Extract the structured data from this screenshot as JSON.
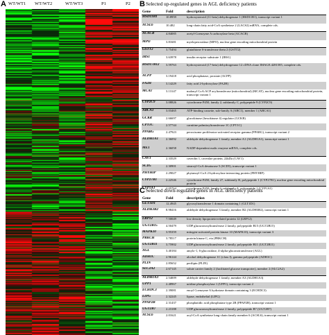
{
  "panel_a": {
    "letter": "A",
    "columns": [
      "WT/WT1",
      "WT/WT2",
      "WT/WT3",
      "P1",
      "P2"
    ]
  },
  "panel_b": {
    "letter": "B",
    "title": "Selected up-regulated genes in AGL deficiency patients",
    "headers": [
      "Gene",
      "Fold",
      "description"
    ],
    "rows": [
      {
        "gene": "HSD11B1",
        "fold": "10.8959",
        "desc": "hydroxysteroid (11-beta) dehydrogenase 1 (HSD11B1), transcript variant 1"
      },
      {
        "gene": "ACSL6",
        "fold": "10.482",
        "desc": "long-chain fatty acid-CoA synthetase 2 (LACS2) mRNA, complete cds."
      },
      {
        "gene": "ACACB",
        "fold": "4.84085",
        "desc": "acetyl-Coenzyme A carboxylase beta (ACACB)"
      },
      {
        "gene": "MPO",
        "fold": "3.81681",
        "desc": "myeloperoxidase (MPO), nuclear gene encoding mitochondrial protein"
      },
      {
        "gene": "GSTT2",
        "fold": "3.75494",
        "desc": "glutathione S-transferase theta 2 (GSTT2)"
      },
      {
        "gene": "IRS1",
        "fold": "3.63978",
        "desc": "insulin receptor substrate 1 (IRS1)"
      },
      {
        "gene": "HSD17B12",
        "fold": "3.59763",
        "desc": "hydroxysteroid (17-beta) dehydrogenase 12 cDNA clone IMAGE:4281585, complete cds."
      },
      {
        "gene": "ACPP",
        "fold": "3.19418",
        "desc": "acid phosphatase, prostate (ACPP)"
      },
      {
        "gene": "FA2H",
        "fold": "3.14229",
        "desc": "fatty acid 2-hydroxylase (FA2H)"
      },
      {
        "gene": "MCAT",
        "fold": "3.13147",
        "desc": "malonyl CoA:ACP acyltransferase (mitochondrial) (MCAT), nuclear gene encoding mitochondrial protein, transcript variant 1"
      },
      {
        "gene": "CYP2C9",
        "fold": "3.08826",
        "desc": "cytochrome P450, family 2, subfamily C, polypeptide 9 (CYP2C9)"
      },
      {
        "gene": "ABCA1",
        "fold": "3.03465",
        "desc": "ATP-binding cassette, sub-family A (ABC1), member 1 (ABCA1)"
      },
      {
        "gene": "GCKR",
        "fold": "2.66697",
        "desc": "glucokinase (hexokinase 4) regulator (GCKR)"
      },
      {
        "gene": "CPT1C",
        "fold": "2.57744",
        "desc": "carnitine palmitoyltransferase 1C (CPT1C)"
      },
      {
        "gene": "PPARG",
        "fold": "2.47923",
        "desc": "peroxisome proliferator-activated receptor gamma (PPARG), transcript variant 2"
      },
      {
        "gene": "ALDH1A1",
        "fold": "2.36092",
        "desc": "aldehyde dehydrogenase 1 family, member A1 (ALDH1A1), transcript variant 1"
      },
      {
        "gene": "ME1",
        "fold": "2.36058",
        "desc": "NADP-dependent malic enzyme mRNA, complete cds."
      },
      {
        "gene": "CAV1",
        "fold": "2.33529",
        "desc": "caveolin 1, caveolae protein, 22kDa (CAV1)"
      },
      {
        "gene": "SCD5",
        "fold": "2.30901",
        "desc": "stearoyl-CoA desaturase 5 (SCD5), transcript variant 1"
      },
      {
        "gene": "PHYHIP",
        "fold": "2.29027",
        "desc": "phytanoyl-CoA 2-hydroxylase interacting protein (PHYHIP)"
      },
      {
        "gene": "CYP27B1",
        "fold": "2.22546",
        "desc": "cytochrome P450, family 27, subfamily B, polypeptide 1 (CYP27B1), nuclear gene encoding mitochondrial protein"
      },
      {
        "gene": "CYP1A1",
        "fold": "2.05764",
        "desc": "cytochrome P450, family 1, subfamily A, polypeptide 1 (CYP1A1)"
      }
    ]
  },
  "panel_c": {
    "letter": "C",
    "title": "Selected down-regulated genes in AGL deficiency patients",
    "headers": [
      "Gene",
      "Fold",
      "description"
    ],
    "rows": [
      {
        "gene": "GLT1D1",
        "fold": "12.4945",
        "desc": "glycosyltransferase 1 domain containing 1 (GLT1D1)"
      },
      {
        "gene": "ALDH3B2",
        "fold": "8.98416",
        "desc": "aldehyde dehydrogenase 3 family, member B2 (ALDH3B2), transcript variant 1"
      },
      {
        "gene": "LRP12",
        "fold": "7.50049",
        "desc": "low density lipoprotein-related protein 12 (LRP12)"
      },
      {
        "gene": "UGT2B15",
        "fold": "4.50479",
        "desc": "UDP glucuronosyltransferase 2 family, polypeptide B15 (UGT2B15)"
      },
      {
        "gene": "MAPK10",
        "fold": "3.95359",
        "desc": "mitogen-activated protein kinase 10 (MAPK10), transcript variant 3"
      },
      {
        "gene": "PRKCH",
        "fold": "3.78517",
        "desc": "protein kinase C, eta (PRKCH)"
      },
      {
        "gene": "UGT2B11",
        "fold": "3.75902",
        "desc": "UDP glucuronosyltransferase 2 family, polypeptide B11 (UGT2B11)"
      },
      {
        "gene": "AGL",
        "fold": "3.40184",
        "desc": "amylo-1, 6-glucosidase, 4-alpha-glucanotransferase (AGL)"
      },
      {
        "gene": "ADH1C",
        "fold": "2.96144",
        "desc": "alcohol dehydrogenase 1C (class I), gamma polypeptide (ADH1C)"
      },
      {
        "gene": "PLIN",
        "fold": "2.85652",
        "desc": "perilipin (PLIN)"
      },
      {
        "gene": "SLC2A2",
        "fold": "2.67145",
        "desc": "solute carrier family 2 (facilitated glucose transporter), member 2 (SLC2A2)"
      },
      {
        "gene": "ALDH1A3",
        "fold": "2.54009",
        "desc": "aldehyde dehydrogenase 1 family, member A3 (ALDH1A3)"
      },
      {
        "gene": "UPP1",
        "fold": "2.48967",
        "desc": "uridine phosphorylase 1 (UPP1), transcript variant 2"
      },
      {
        "gene": "ECHDC3",
        "fold": "2.39081",
        "desc": "enoyl Coenzyme A hydratase domain containing 3 (ECHDC3)"
      },
      {
        "gene": "LIPG",
        "fold": "2.32245",
        "desc": "lipase, endothelial (LIPG)"
      },
      {
        "gene": "PPAP2B",
        "fold": "2.31437",
        "desc": "phosphatidic acid phosphatase type 2B (PPAP2B), transcript variant 1"
      },
      {
        "gene": "UGT2B7",
        "fold": "2.23188",
        "desc": "UDP glucuronosyltransferase 2 family, polypeptide B7 (UGT2B7)"
      },
      {
        "gene": "ACSL6",
        "fold": "2.01621",
        "desc": "acyl-CoA synthetase long-chain family member 6 (ACSL6), transcript variant 1"
      }
    ]
  }
}
